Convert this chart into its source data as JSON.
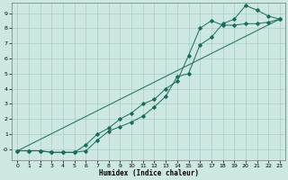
{
  "xlabel": "Humidex (Indice chaleur)",
  "ylabel": "",
  "bg_color": "#cce8e0",
  "grid_color": "#aacccc",
  "line_color": "#1a6b5a",
  "xlim": [
    -0.5,
    23.5
  ],
  "ylim": [
    -0.7,
    9.7
  ],
  "xticks": [
    0,
    1,
    2,
    3,
    4,
    5,
    6,
    7,
    8,
    9,
    10,
    11,
    12,
    13,
    14,
    15,
    16,
    17,
    18,
    19,
    20,
    21,
    22,
    23
  ],
  "yticks": [
    0,
    1,
    2,
    3,
    4,
    5,
    6,
    7,
    8,
    9
  ],
  "ytick_labels": [
    "-0",
    "1",
    "2",
    "3",
    "4",
    "5",
    "6",
    "7",
    "8",
    "9"
  ],
  "curve1_x": [
    0,
    1,
    2,
    3,
    4,
    5,
    6,
    7,
    8,
    9,
    10,
    11,
    12,
    13,
    14,
    15,
    16,
    17,
    18,
    19,
    20,
    21,
    22,
    23
  ],
  "curve1_y": [
    -0.1,
    -0.1,
    -0.1,
    -0.2,
    -0.2,
    -0.2,
    -0.1,
    0.6,
    1.2,
    1.5,
    1.8,
    2.2,
    2.8,
    3.5,
    4.8,
    5.0,
    6.9,
    7.4,
    8.3,
    8.6,
    9.5,
    9.2,
    8.8,
    8.6
  ],
  "curve2_x": [
    0,
    1,
    2,
    3,
    4,
    5,
    6,
    7,
    8,
    9,
    10,
    11,
    12,
    13,
    14,
    15,
    16,
    17,
    18,
    19,
    20,
    21,
    22,
    23
  ],
  "curve2_y": [
    -0.1,
    -0.1,
    -0.1,
    -0.2,
    -0.2,
    -0.2,
    0.3,
    1.0,
    1.4,
    2.0,
    2.4,
    3.0,
    3.3,
    4.0,
    4.5,
    6.2,
    8.0,
    8.5,
    8.2,
    8.2,
    8.3,
    8.3,
    8.4,
    8.6
  ],
  "curve3_x": [
    0,
    23
  ],
  "curve3_y": [
    -0.1,
    8.6
  ]
}
